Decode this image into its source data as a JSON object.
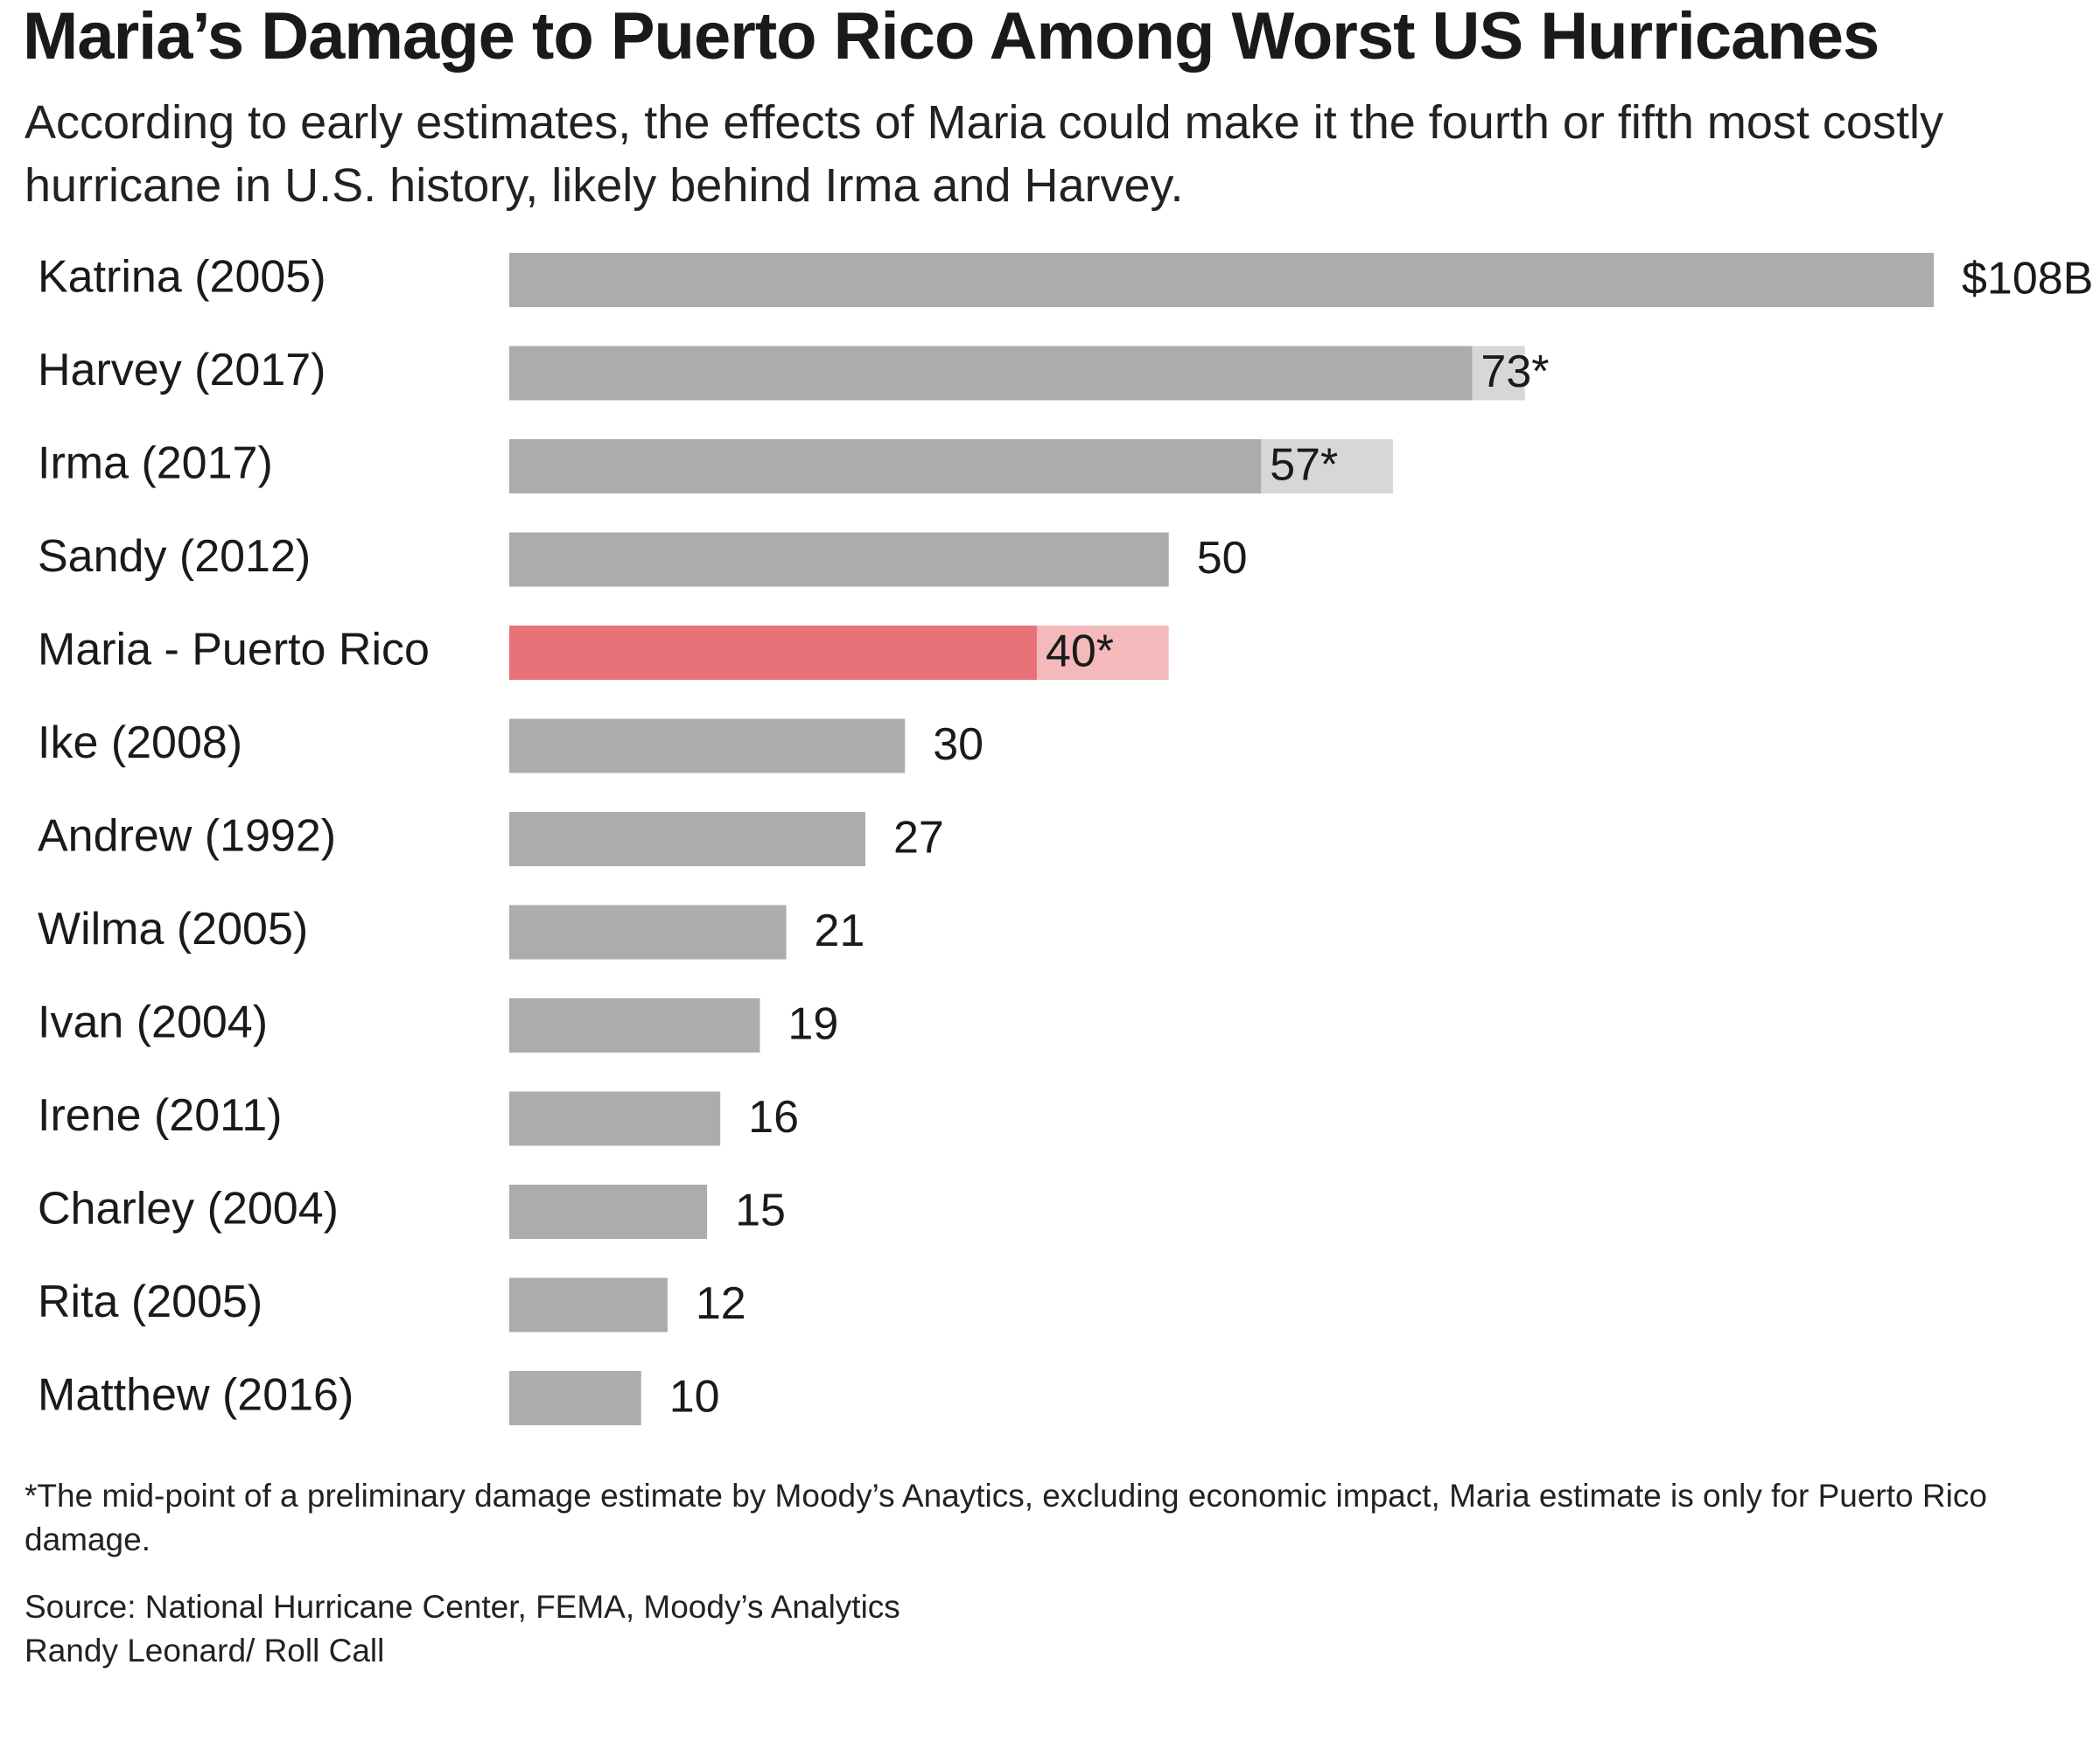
{
  "title": "Maria’s Damage to Puerto Rico Among Worst US Hurricanes",
  "subtitle": "According to early estimates, the effects of Maria could make it the fourth or fifth most costly hurricane in U.S. history, likely behind Irma and Harvey.",
  "footnote": "*The mid-point of a preliminary damage estimate by Moody’s Anaytics, excluding economic impact, Maria estimate is only for Puerto Rico damage.",
  "source": "Source: National Hurricane Center, FEMA, Moody’s Analytics",
  "credit": "Randy Leonard/ Roll Call",
  "colors": {
    "bar": "#abacae",
    "bar_range": "#d6d7d9",
    "highlight": "#e8727a",
    "highlight_range": "#f4b9bb",
    "text": "#1a1a1a"
  },
  "chart_data": {
    "type": "bar",
    "orientation": "horizontal",
    "unit_prefix": "$",
    "unit_suffix": "B",
    "xlim": [
      0,
      108
    ],
    "categories": [
      "Katrina (2005)",
      "Harvey (2017)",
      "Irma (2017)",
      "Sandy (2012)",
      "Maria - Puerto Rico",
      "Ike (2008)",
      "Andrew (1992)",
      "Wilma (2005)",
      "Ivan (2004)",
      "Irene (2011)",
      "Charley (2004)",
      "Rita (2005)",
      "Matthew (2016)"
    ],
    "values": [
      108,
      73,
      57,
      50,
      40,
      30,
      27,
      21,
      19,
      16,
      15,
      12,
      10
    ],
    "value_labels": [
      "$108B",
      "73*",
      "57*",
      "50",
      "40*",
      "30",
      "27",
      "21",
      "19",
      "16",
      "15",
      "12",
      "10"
    ],
    "estimate_range_high": [
      null,
      77,
      67,
      null,
      50,
      null,
      null,
      null,
      null,
      null,
      null,
      null,
      null
    ],
    "highlight": [
      "Maria - Puerto Rico"
    ],
    "grid": false,
    "legend": "none"
  }
}
